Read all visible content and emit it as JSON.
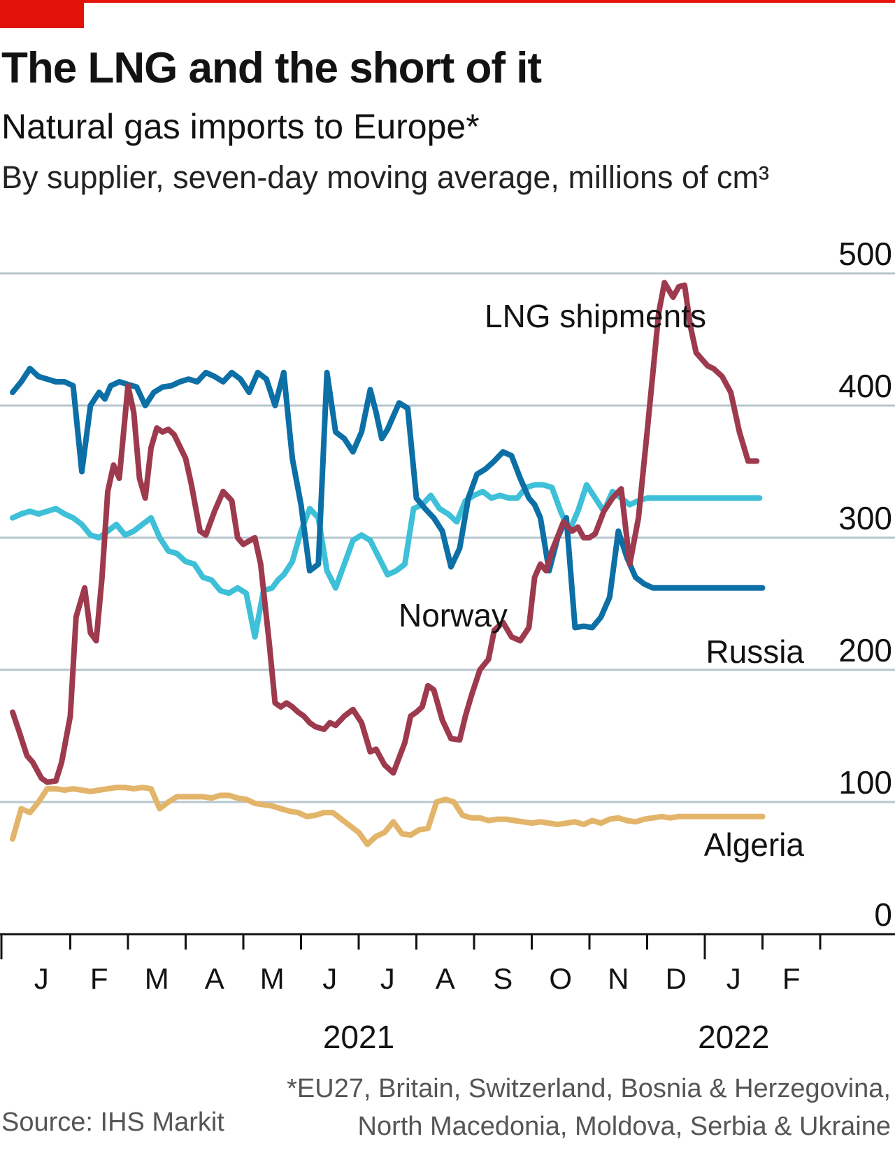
{
  "header": {
    "title": "The LNG and the short of it",
    "subtitle": "Natural gas imports to Europe*",
    "units": "By supplier, seven-day moving average, millions of cm³"
  },
  "footer": {
    "footnote_line1": "*EU27, Britain, Switzerland, Bosnia & Herzegovina,",
    "footnote_line2": "North Macedonia, Moldova, Serbia & Ukraine",
    "source": "Source: IHS Markit"
  },
  "colors": {
    "accent": "#e3120b",
    "lng": "#9e3a4e",
    "russia": "#0c6fa6",
    "norway": "#3dc0d8",
    "algeria": "#e2b56b",
    "grid": "#b7c6cf",
    "axis": "#121212"
  },
  "chart_data": {
    "type": "line",
    "title": "The LNG and the short of it",
    "subtitle": "Natural gas imports to Europe*",
    "ylabel": "By supplier, seven-day moving average, millions of cm³",
    "ylim": [
      0,
      500
    ],
    "yticks": [
      0,
      100,
      200,
      300,
      400,
      500
    ],
    "y_axis_position": "right",
    "grid": true,
    "x_month_labels": [
      "J",
      "F",
      "M",
      "A",
      "M",
      "J",
      "J",
      "A",
      "S",
      "O",
      "N",
      "D",
      "J",
      "F"
    ],
    "x_year_labels": [
      {
        "label": "2021",
        "month_index": 6
      },
      {
        "label": "2022",
        "month_index": 12.5
      }
    ],
    "x_unit": "months since start of January 2021",
    "series": [
      {
        "name": "LNG shipments",
        "key": "lng",
        "x": [
          0.0,
          0.1,
          0.25,
          0.35,
          0.5,
          0.6,
          0.75,
          0.85,
          1.0,
          1.1,
          1.25,
          1.35,
          1.45,
          1.55,
          1.65,
          1.75,
          1.85,
          2.0,
          2.1,
          2.2,
          2.3,
          2.4,
          2.5,
          2.6,
          2.7,
          2.8,
          3.0,
          3.1,
          3.25,
          3.35,
          3.5,
          3.65,
          3.8,
          3.9,
          4.0,
          4.2,
          4.3,
          4.45,
          4.55,
          4.65,
          4.75,
          4.85,
          4.95,
          5.05,
          5.15,
          5.25,
          5.4,
          5.5,
          5.6,
          5.75,
          5.9,
          6.05,
          6.2,
          6.3,
          6.45,
          6.6,
          6.8,
          6.9,
          7.0,
          7.1,
          7.2,
          7.3,
          7.45,
          7.6,
          7.75,
          7.85,
          7.95,
          8.1,
          8.25,
          8.35,
          8.5,
          8.65,
          8.8,
          8.95,
          9.05,
          9.15,
          9.25,
          9.35,
          9.55,
          9.7,
          9.8,
          9.9,
          10.0,
          10.1,
          10.25,
          10.4,
          10.55,
          10.7,
          10.85,
          11.0,
          11.1,
          11.2,
          11.3,
          11.45,
          11.55,
          11.65,
          11.75,
          11.85,
          11.95,
          12.05,
          12.15,
          12.3,
          12.45,
          12.6,
          12.75,
          12.9,
          13.05,
          13.15,
          13.3,
          13.45,
          13.6
        ],
        "y": [
          168,
          155,
          135,
          130,
          118,
          115,
          116,
          130,
          165,
          240,
          262,
          228,
          222,
          270,
          335,
          355,
          345,
          415,
          395,
          345,
          330,
          368,
          383,
          380,
          382,
          378,
          360,
          340,
          305,
          302,
          320,
          335,
          328,
          300,
          295,
          300,
          280,
          220,
          175,
          172,
          175,
          172,
          168,
          165,
          160,
          157,
          155,
          160,
          158,
          165,
          170,
          160,
          138,
          140,
          128,
          122,
          145,
          165,
          168,
          172,
          188,
          185,
          162,
          148,
          147,
          165,
          180,
          200,
          208,
          230,
          236,
          225,
          222,
          232,
          270,
          280,
          275,
          290,
          312,
          305,
          308,
          300,
          300,
          303,
          320,
          330,
          337,
          280,
          315,
          380,
          425,
          470,
          493,
          482,
          490,
          491,
          460,
          440,
          435,
          430,
          428,
          422,
          410,
          380,
          358,
          358,
          358,
          358,
          358,
          358,
          358
        ],
        "visible_until": 13.0
      },
      {
        "name": "Russia",
        "key": "russia",
        "x": [
          0.0,
          0.15,
          0.3,
          0.45,
          0.6,
          0.75,
          0.9,
          1.05,
          1.2,
          1.35,
          1.5,
          1.6,
          1.7,
          1.85,
          2.0,
          2.15,
          2.3,
          2.45,
          2.6,
          2.75,
          2.9,
          3.05,
          3.2,
          3.35,
          3.5,
          3.65,
          3.8,
          3.95,
          4.1,
          4.25,
          4.4,
          4.55,
          4.7,
          4.85,
          5.0,
          5.15,
          5.3,
          5.45,
          5.6,
          5.75,
          5.9,
          6.05,
          6.2,
          6.3,
          6.4,
          6.5,
          6.6,
          6.7,
          6.85,
          7.0,
          7.15,
          7.3,
          7.45,
          7.6,
          7.75,
          7.9,
          8.05,
          8.2,
          8.35,
          8.5,
          8.65,
          8.8,
          8.95,
          9.05,
          9.15,
          9.3,
          9.45,
          9.6,
          9.75,
          9.9,
          10.05,
          10.2,
          10.35,
          10.5,
          10.65,
          10.8,
          10.95,
          11.1,
          11.25,
          11.4,
          11.55,
          11.7,
          11.85,
          12.0,
          12.15,
          12.3,
          12.45,
          12.6,
          12.75,
          12.9,
          13.0,
          13.1,
          13.2
        ],
        "y": [
          410,
          418,
          428,
          422,
          420,
          418,
          418,
          415,
          350,
          400,
          410,
          405,
          415,
          418,
          416,
          414,
          400,
          410,
          414,
          415,
          418,
          420,
          418,
          425,
          422,
          418,
          425,
          420,
          410,
          425,
          420,
          400,
          425,
          360,
          325,
          275,
          280,
          425,
          380,
          375,
          365,
          380,
          412,
          395,
          375,
          382,
          392,
          402,
          398,
          330,
          322,
          315,
          305,
          278,
          292,
          330,
          348,
          352,
          358,
          365,
          362,
          345,
          330,
          325,
          315,
          275,
          300,
          315,
          232,
          233,
          232,
          240,
          255,
          305,
          285,
          270,
          265,
          262,
          262,
          262,
          262,
          262,
          262,
          262,
          262,
          262,
          262,
          262,
          262,
          262,
          262,
          262,
          262
        ],
        "visible_until": 13.0
      },
      {
        "name": "Norway",
        "key": "norway",
        "x": [
          0.0,
          0.15,
          0.3,
          0.45,
          0.6,
          0.75,
          0.9,
          1.05,
          1.2,
          1.35,
          1.5,
          1.65,
          1.8,
          1.95,
          2.1,
          2.25,
          2.4,
          2.55,
          2.7,
          2.85,
          3.0,
          3.15,
          3.3,
          3.45,
          3.6,
          3.75,
          3.9,
          4.05,
          4.2,
          4.35,
          4.5,
          4.6,
          4.7,
          4.85,
          5.0,
          5.15,
          5.3,
          5.45,
          5.6,
          5.75,
          5.9,
          6.05,
          6.2,
          6.35,
          6.5,
          6.65,
          6.8,
          6.95,
          7.1,
          7.25,
          7.4,
          7.55,
          7.7,
          7.85,
          8.0,
          8.15,
          8.3,
          8.45,
          8.6,
          8.75,
          8.9,
          9.05,
          9.2,
          9.35,
          9.5,
          9.65,
          9.8,
          9.95,
          10.1,
          10.25,
          10.4,
          10.55,
          10.7,
          10.85,
          11.0,
          11.15,
          11.3,
          11.45,
          11.6,
          11.75,
          11.9,
          12.05,
          12.2,
          12.35,
          12.5,
          12.65,
          12.8,
          12.95,
          13.05,
          13.15,
          13.25
        ],
        "y": [
          315,
          318,
          320,
          318,
          320,
          322,
          318,
          315,
          310,
          302,
          300,
          305,
          310,
          302,
          305,
          310,
          315,
          300,
          290,
          288,
          282,
          280,
          270,
          268,
          260,
          258,
          262,
          258,
          225,
          260,
          262,
          268,
          272,
          282,
          305,
          322,
          315,
          275,
          262,
          280,
          298,
          302,
          298,
          285,
          272,
          275,
          280,
          322,
          325,
          332,
          322,
          318,
          312,
          328,
          332,
          335,
          330,
          332,
          330,
          330,
          338,
          340,
          340,
          338,
          320,
          305,
          320,
          340,
          330,
          320,
          335,
          330,
          325,
          328,
          330,
          330,
          330,
          330,
          330,
          330,
          330,
          330,
          330,
          330,
          330,
          330,
          330,
          330,
          330,
          330,
          330
        ],
        "visible_until": 13.0
      },
      {
        "name": "Algeria",
        "key": "algeria",
        "x": [
          0.0,
          0.15,
          0.3,
          0.45,
          0.6,
          0.75,
          0.9,
          1.05,
          1.2,
          1.35,
          1.5,
          1.65,
          1.8,
          1.95,
          2.1,
          2.25,
          2.4,
          2.55,
          2.7,
          2.85,
          3.0,
          3.15,
          3.3,
          3.45,
          3.6,
          3.75,
          3.9,
          4.05,
          4.2,
          4.35,
          4.5,
          4.65,
          4.8,
          4.95,
          5.1,
          5.25,
          5.4,
          5.55,
          5.7,
          5.85,
          6.0,
          6.15,
          6.3,
          6.45,
          6.6,
          6.75,
          6.9,
          7.05,
          7.2,
          7.35,
          7.5,
          7.65,
          7.8,
          7.95,
          8.1,
          8.25,
          8.4,
          8.55,
          8.7,
          8.85,
          9.0,
          9.15,
          9.3,
          9.45,
          9.6,
          9.75,
          9.9,
          10.05,
          10.2,
          10.35,
          10.5,
          10.65,
          10.8,
          10.95,
          11.1,
          11.25,
          11.4,
          11.55,
          11.7,
          11.85,
          12.0,
          12.15,
          12.3,
          12.45,
          12.6,
          12.75,
          12.9,
          13.0
        ],
        "y": [
          72,
          95,
          92,
          100,
          110,
          110,
          109,
          110,
          109,
          108,
          109,
          110,
          111,
          111,
          110,
          111,
          110,
          95,
          100,
          104,
          104,
          104,
          104,
          103,
          105,
          105,
          103,
          102,
          99,
          98,
          97,
          95,
          93,
          92,
          89,
          90,
          92,
          92,
          87,
          82,
          77,
          68,
          74,
          77,
          85,
          76,
          75,
          79,
          80,
          100,
          102,
          100,
          90,
          88,
          88,
          86,
          87,
          87,
          86,
          85,
          84,
          85,
          84,
          83,
          84,
          85,
          83,
          86,
          84,
          87,
          88,
          86,
          85,
          87,
          88,
          89,
          88,
          89,
          89,
          89,
          89,
          89,
          89,
          89,
          89,
          89,
          89,
          89
        ],
        "visible_until": 13.0
      }
    ],
    "series_labels": [
      {
        "key": "lng",
        "text": "LNG shipments"
      },
      {
        "key": "norway",
        "text": "Norway"
      },
      {
        "key": "russia",
        "text": "Russia"
      },
      {
        "key": "algeria",
        "text": "Algeria"
      }
    ]
  }
}
